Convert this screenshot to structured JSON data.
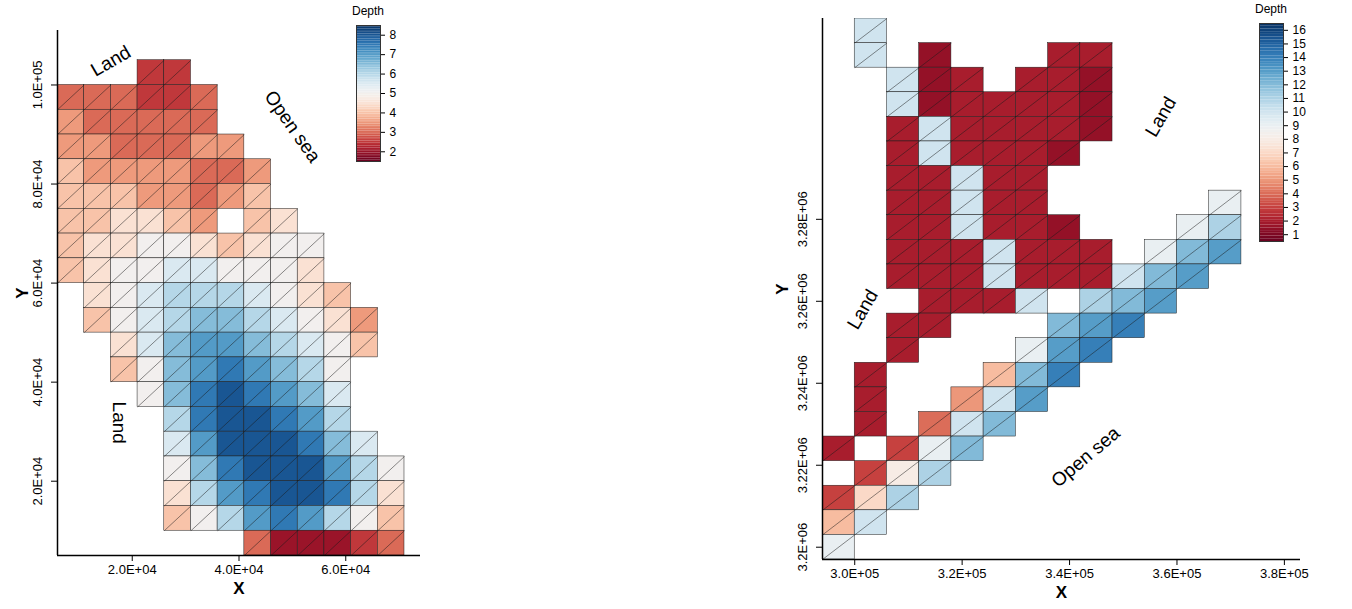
{
  "chart_data": [
    {
      "type": "heatmap",
      "x_label": "X",
      "y_label": "Y",
      "xlim": [
        6000,
        74000
      ],
      "ylim": [
        5000,
        111000
      ],
      "xticks": [
        {
          "value": 20000,
          "label": "2.0E+04"
        },
        {
          "value": 40000,
          "label": "4.0E+04"
        },
        {
          "value": 60000,
          "label": "6.0E+04"
        }
      ],
      "yticks": [
        {
          "value": 20000,
          "label": "2.0E+04"
        },
        {
          "value": 40000,
          "label": "4.0E+04"
        },
        {
          "value": 60000,
          "label": "6.0E+04"
        },
        {
          "value": 80000,
          "label": "8.0E+04"
        },
        {
          "value": 100000,
          "label": "1.0E+05"
        }
      ],
      "x": [
        8500,
        13500,
        18500,
        23500,
        28500,
        33500,
        38500,
        43500,
        48500,
        53500,
        58500,
        63500,
        68500,
        73500
      ],
      "y": [
        102500,
        97500,
        92500,
        87500,
        82500,
        77500,
        72500,
        67500,
        62500,
        57500,
        52500,
        47500,
        42500,
        37500,
        32500,
        27500,
        22500,
        17500,
        12500,
        7500
      ],
      "depth": [
        [
          null,
          null,
          null,
          2.5,
          2.5,
          null,
          null,
          null,
          null,
          null,
          null,
          null,
          null,
          null
        ],
        [
          3,
          3,
          3,
          2.5,
          2.5,
          3,
          null,
          null,
          null,
          null,
          null,
          null,
          null,
          null
        ],
        [
          3.5,
          3,
          3,
          3,
          3,
          3,
          null,
          null,
          null,
          null,
          null,
          null,
          null,
          null
        ],
        [
          3.5,
          3.5,
          3,
          3,
          3,
          3.5,
          3.5,
          null,
          null,
          null,
          null,
          null,
          null,
          null
        ],
        [
          4,
          3.5,
          3.5,
          3.5,
          3.5,
          3,
          3,
          3.5,
          null,
          null,
          null,
          null,
          null,
          null
        ],
        [
          4,
          4,
          4,
          3.5,
          3.5,
          3,
          3.5,
          4,
          null,
          null,
          null,
          null,
          null,
          null
        ],
        [
          4,
          4,
          4.5,
          4.5,
          4,
          3.5,
          null,
          4,
          4.5,
          null,
          null,
          null,
          null,
          null
        ],
        [
          4,
          4.5,
          4.5,
          5,
          5,
          4.5,
          4,
          4.5,
          5,
          5,
          null,
          null,
          null,
          null
        ],
        [
          4,
          4.5,
          5,
          5,
          5.5,
          5.5,
          5,
          5,
          5,
          4.5,
          null,
          null,
          null,
          null
        ],
        [
          null,
          4.5,
          5,
          5.5,
          6,
          6,
          6,
          5.5,
          5,
          4.5,
          4,
          null,
          null,
          null
        ],
        [
          null,
          4,
          5,
          5.5,
          6,
          6.5,
          6.5,
          6,
          5.5,
          5,
          4.5,
          3.5,
          null,
          null
        ],
        [
          null,
          null,
          4.5,
          5.5,
          6.5,
          7,
          7,
          6.5,
          6,
          5.5,
          5,
          4,
          null,
          null
        ],
        [
          null,
          null,
          4,
          5,
          6.5,
          7,
          7.5,
          7,
          6.5,
          6,
          5,
          null,
          null,
          null
        ],
        [
          null,
          null,
          null,
          5,
          6.5,
          7.5,
          8,
          7.5,
          7,
          6.5,
          5.5,
          null,
          null,
          null
        ],
        [
          null,
          null,
          null,
          null,
          6,
          7.5,
          8,
          8,
          7.5,
          7,
          6,
          null,
          null,
          null
        ],
        [
          null,
          null,
          null,
          null,
          5.5,
          7,
          8,
          8,
          8,
          7.5,
          6.5,
          5.5,
          null,
          null
        ],
        [
          null,
          null,
          null,
          null,
          5,
          6.5,
          7.5,
          8,
          8,
          8,
          7,
          6,
          5,
          null
        ],
        [
          null,
          null,
          null,
          null,
          4.5,
          6,
          7,
          7.5,
          8,
          8,
          7.5,
          6,
          4.5,
          null
        ],
        [
          null,
          null,
          null,
          null,
          4,
          5,
          6,
          7,
          7.5,
          7,
          6,
          5,
          4,
          null
        ],
        [
          null,
          null,
          null,
          null,
          null,
          null,
          null,
          3,
          2,
          2,
          2,
          2.5,
          3,
          null
        ]
      ],
      "colorbar_label": "Depth",
      "colorbar_range": [
        1.5,
        8.5
      ],
      "colorbar_ticks": [
        2,
        3,
        4,
        5,
        6,
        7,
        8
      ],
      "annotations": [
        "Land",
        "Open sea",
        "Land"
      ]
    },
    {
      "type": "heatmap",
      "x_label": "X",
      "y_label": "Y",
      "xlim": [
        294000,
        383000
      ],
      "ylim": [
        3197000,
        3329000
      ],
      "xticks": [
        {
          "value": 300000,
          "label": "3.0E+05"
        },
        {
          "value": 320000,
          "label": "3.2E+05"
        },
        {
          "value": 340000,
          "label": "3.4E+05"
        },
        {
          "value": 360000,
          "label": "3.6E+05"
        },
        {
          "value": 380000,
          "label": "3.8E+05"
        }
      ],
      "yticks": [
        {
          "value": 3200000,
          "label": "3.2E+06"
        },
        {
          "value": 3220000,
          "label": "3.22E+06"
        },
        {
          "value": 3240000,
          "label": "3.24E+06"
        },
        {
          "value": 3260000,
          "label": "3.26E+06"
        },
        {
          "value": 3280000,
          "label": "3.28E+06"
        }
      ],
      "x": [
        297000,
        303000,
        309000,
        315000,
        321000,
        327000,
        333000,
        339000,
        345000,
        351000,
        357000,
        363000,
        369000
      ],
      "y": [
        3326000,
        3320000,
        3314000,
        3308000,
        3302000,
        3296000,
        3290000,
        3284000,
        3278000,
        3272000,
        3266000,
        3260000,
        3254000,
        3248000,
        3242000,
        3236000,
        3230000,
        3224000,
        3218000,
        3212000,
        3206000,
        3200000
      ],
      "depth": [
        [
          null,
          10,
          null,
          null,
          null,
          null,
          null,
          null,
          null,
          null,
          null,
          null,
          null
        ],
        [
          null,
          10,
          null,
          1.5,
          null,
          null,
          null,
          2,
          2,
          null,
          null,
          null,
          null
        ],
        [
          null,
          null,
          10,
          1.5,
          2,
          null,
          2,
          2,
          1.5,
          null,
          null,
          null,
          null
        ],
        [
          null,
          null,
          10,
          1.5,
          2,
          2,
          2,
          2,
          1.5,
          null,
          null,
          null,
          null
        ],
        [
          null,
          null,
          2,
          10,
          2,
          2,
          2,
          2,
          1.5,
          null,
          null,
          null,
          null
        ],
        [
          null,
          null,
          2,
          10,
          2,
          2,
          2,
          1.5,
          null,
          null,
          null,
          null,
          null
        ],
        [
          null,
          null,
          2,
          2,
          10,
          2,
          2,
          null,
          null,
          null,
          null,
          null,
          null
        ],
        [
          null,
          null,
          2,
          2,
          10,
          2,
          2,
          null,
          null,
          null,
          null,
          null,
          9
        ],
        [
          null,
          null,
          2,
          2,
          10,
          2,
          2,
          1.5,
          null,
          null,
          null,
          9,
          11
        ],
        [
          null,
          null,
          2,
          2,
          2,
          10,
          2,
          2,
          2,
          null,
          9,
          12,
          13
        ],
        [
          null,
          null,
          2,
          2,
          2,
          10,
          2,
          2,
          2,
          10,
          12,
          13,
          null
        ],
        [
          null,
          null,
          null,
          2,
          2,
          2,
          10,
          null,
          11,
          12,
          13,
          null,
          null
        ],
        [
          null,
          null,
          2,
          2,
          null,
          null,
          null,
          12,
          13,
          14,
          null,
          null,
          null
        ],
        [
          null,
          null,
          2,
          null,
          null,
          null,
          9,
          13,
          14,
          null,
          null,
          null,
          null
        ],
        [
          null,
          2,
          null,
          null,
          null,
          6,
          12,
          14,
          null,
          null,
          null,
          null,
          null
        ],
        [
          null,
          2,
          null,
          null,
          5,
          10,
          13,
          null,
          null,
          null,
          null,
          null,
          null
        ],
        [
          null,
          2,
          null,
          4,
          10,
          12,
          null,
          null,
          null,
          null,
          null,
          null,
          null
        ],
        [
          2,
          null,
          3,
          9,
          12,
          null,
          null,
          null,
          null,
          null,
          null,
          null,
          null
        ],
        [
          null,
          3,
          8,
          11,
          null,
          null,
          null,
          null,
          null,
          null,
          null,
          null,
          null
        ],
        [
          3,
          7,
          11,
          null,
          null,
          null,
          null,
          null,
          null,
          null,
          null,
          null,
          null
        ],
        [
          6,
          10,
          null,
          null,
          null,
          null,
          null,
          null,
          null,
          null,
          null,
          null,
          null
        ],
        [
          9,
          null,
          null,
          null,
          null,
          null,
          null,
          null,
          null,
          null,
          null,
          null,
          null
        ]
      ],
      "colorbar_label": "Depth",
      "colorbar_range": [
        0.5,
        16.5
      ],
      "colorbar_ticks": [
        1,
        2,
        3,
        4,
        5,
        6,
        7,
        8,
        9,
        10,
        11,
        12,
        13,
        14,
        15,
        16
      ],
      "annotations": [
        "Land",
        "Land",
        "Open sea"
      ]
    }
  ]
}
